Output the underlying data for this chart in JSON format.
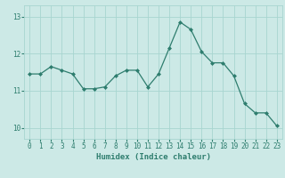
{
  "x": [
    0,
    1,
    2,
    3,
    4,
    5,
    6,
    7,
    8,
    9,
    10,
    11,
    12,
    13,
    14,
    15,
    16,
    17,
    18,
    19,
    20,
    21,
    22,
    23
  ],
  "y": [
    11.45,
    11.45,
    11.65,
    11.55,
    11.45,
    11.05,
    11.05,
    11.1,
    11.4,
    11.55,
    11.55,
    11.1,
    11.45,
    12.15,
    12.85,
    12.65,
    12.05,
    11.75,
    11.75,
    11.4,
    10.65,
    10.4,
    10.4,
    10.05
  ],
  "line_color": "#2e7d6e",
  "marker": "D",
  "marker_size": 2,
  "bg_color": "#cce9e6",
  "grid_color": "#a8d5d0",
  "xlabel": "Humidex (Indice chaleur)",
  "ylabel": "",
  "xlim": [
    -0.5,
    23.5
  ],
  "ylim": [
    9.7,
    13.3
  ],
  "yticks": [
    10,
    11,
    12,
    13
  ],
  "xticks": [
    0,
    1,
    2,
    3,
    4,
    5,
    6,
    7,
    8,
    9,
    10,
    11,
    12,
    13,
    14,
    15,
    16,
    17,
    18,
    19,
    20,
    21,
    22,
    23
  ],
  "tick_color": "#2e7d6e",
  "label_fontsize": 6.5,
  "tick_fontsize": 5.5
}
